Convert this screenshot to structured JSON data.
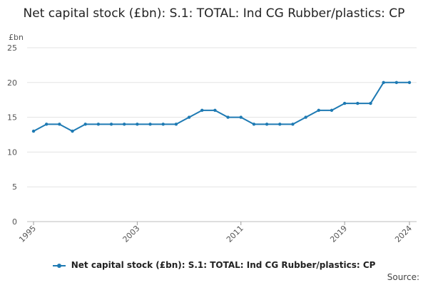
{
  "chart_data": {
    "type": "line",
    "title": "Net capital stock (£bn): S.1: TOTAL: Ind CG Rubber/plastics: CP",
    "ylabel": "£bn",
    "ylim": [
      0,
      25
    ],
    "yticks": [
      "0",
      "5",
      "10",
      "15",
      "20",
      "25"
    ],
    "x": [
      "1995",
      "1996",
      "1997",
      "1998",
      "1999",
      "2000",
      "2001",
      "2002",
      "2003",
      "2004",
      "2005",
      "2006",
      "2007",
      "2008",
      "2009",
      "2010",
      "2011",
      "2012",
      "2013",
      "2014",
      "2015",
      "2016",
      "2017",
      "2018",
      "2019",
      "2020",
      "2021",
      "2022",
      "2023",
      "2024"
    ],
    "xticks": [
      "1995",
      "2003",
      "2011",
      "2019",
      "2024"
    ],
    "series": [
      {
        "name": "Net capital stock (£bn): S.1: TOTAL: Ind CG Rubber/plastics: CP",
        "color": "#1e7ab3",
        "values": [
          13,
          14,
          14,
          13,
          14,
          14,
          14,
          14,
          14,
          14,
          14,
          14,
          15,
          16,
          16,
          15,
          15,
          14,
          14,
          14,
          14,
          15,
          16,
          16,
          17,
          17,
          17,
          20,
          20,
          20
        ]
      }
    ],
    "grid": true,
    "legend_position": "bottom"
  },
  "source_label": "Source:"
}
